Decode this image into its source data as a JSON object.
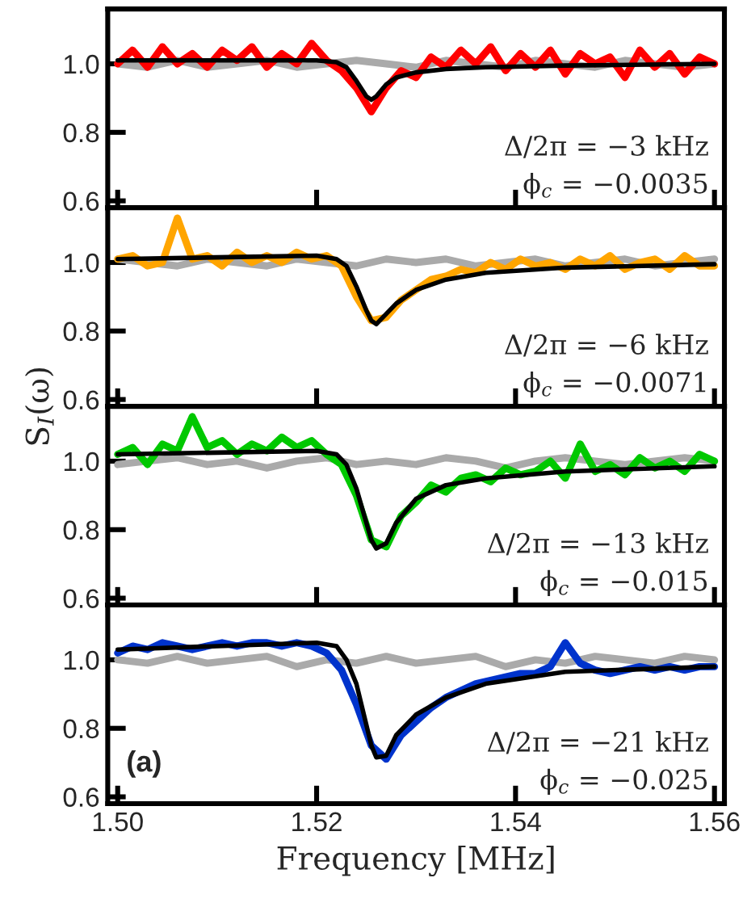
{
  "chart_data": [
    {
      "type": "line",
      "xlim": [
        1.499,
        1.561
      ],
      "ylim": [
        0.58,
        1.16
      ],
      "xticks": [
        {
          "value": 1.5,
          "label": null
        },
        {
          "value": 1.52,
          "label": null
        },
        {
          "value": 1.54,
          "label": null
        },
        {
          "value": 1.56,
          "label": null
        }
      ],
      "yticks": [
        {
          "value": 0.6,
          "label": "0.6"
        },
        {
          "value": 0.8,
          "label": "0.8"
        },
        {
          "value": 1.0,
          "label": "1.0"
        }
      ],
      "tick_labels": "y",
      "grid": false,
      "legend": false,
      "annotations": [
        "Δ/2π = −3 kHz",
        "ϕ$_{c}$ = −0.0035"
      ],
      "series": [
        {
          "color": "#aaaaaa",
          "x": [
            1.5,
            1.503,
            1.506,
            1.509,
            1.512,
            1.515,
            1.518,
            1.521,
            1.524,
            1.527,
            1.53,
            1.533,
            1.536,
            1.539,
            1.542,
            1.545,
            1.548,
            1.551,
            1.554,
            1.557,
            1.56
          ],
          "values": [
            1.0,
            0.99,
            1.01,
            0.99,
            1.0,
            1.01,
            0.99,
            1.0,
            1.01,
            1.0,
            0.99,
            1.01,
            1.0,
            0.99,
            1.01,
            1.0,
            0.99,
            1.01,
            1.0,
            0.99,
            1.0
          ]
        },
        {
          "color": "#ff0000",
          "x": [
            1.5,
            1.5015,
            1.503,
            1.5045,
            1.506,
            1.5075,
            1.509,
            1.5105,
            1.512,
            1.5135,
            1.515,
            1.5165,
            1.518,
            1.5195,
            1.521,
            1.5225,
            1.524,
            1.5255,
            1.527,
            1.5285,
            1.53,
            1.5315,
            1.533,
            1.5345,
            1.536,
            1.5375,
            1.539,
            1.5405,
            1.542,
            1.5435,
            1.545,
            1.5465,
            1.548,
            1.5495,
            1.551,
            1.5525,
            1.554,
            1.5555,
            1.557,
            1.5585,
            1.56
          ],
          "values": [
            1.0,
            1.04,
            0.99,
            1.05,
            1.0,
            1.03,
            0.99,
            1.04,
            1.01,
            1.05,
            0.99,
            1.03,
            1.0,
            1.06,
            1.01,
            0.98,
            0.93,
            0.86,
            0.93,
            0.98,
            0.96,
            1.02,
            0.99,
            1.04,
            1.0,
            1.05,
            0.98,
            1.03,
            0.99,
            1.04,
            0.97,
            1.03,
            1.0,
            1.02,
            0.96,
            1.04,
            0.99,
            1.03,
            0.97,
            1.02,
            1.0
          ]
        },
        {
          "color": "#000000",
          "x": [
            1.5,
            1.51,
            1.52,
            1.522,
            1.523,
            1.524,
            1.525,
            1.5255,
            1.526,
            1.527,
            1.528,
            1.53,
            1.533,
            1.537,
            1.545,
            1.56
          ],
          "values": [
            1.01,
            1.01,
            1.01,
            1.005,
            0.99,
            0.95,
            0.905,
            0.895,
            0.905,
            0.94,
            0.96,
            0.975,
            0.985,
            0.99,
            0.995,
            1.0
          ]
        }
      ]
    },
    {
      "type": "line",
      "xlim": [
        1.499,
        1.561
      ],
      "ylim": [
        0.58,
        1.16
      ],
      "xticks": [
        {
          "value": 1.5,
          "label": null
        },
        {
          "value": 1.52,
          "label": null
        },
        {
          "value": 1.54,
          "label": null
        },
        {
          "value": 1.56,
          "label": null
        }
      ],
      "yticks": [
        {
          "value": 0.6,
          "label": "0.6"
        },
        {
          "value": 0.8,
          "label": "0.8"
        },
        {
          "value": 1.0,
          "label": "1.0"
        }
      ],
      "tick_labels": "y",
      "grid": false,
      "legend": false,
      "annotations": [
        "Δ/2π = −6 kHz",
        "ϕ$_{c}$ = −0.0071"
      ],
      "series": [
        {
          "color": "#aaaaaa",
          "x": [
            1.5,
            1.503,
            1.506,
            1.509,
            1.512,
            1.515,
            1.518,
            1.521,
            1.524,
            1.527,
            1.53,
            1.533,
            1.536,
            1.539,
            1.542,
            1.545,
            1.548,
            1.551,
            1.554,
            1.557,
            1.56
          ],
          "values": [
            1.01,
            1.0,
            0.99,
            1.01,
            1.0,
            0.99,
            1.01,
            1.0,
            0.99,
            1.01,
            1.0,
            1.01,
            0.99,
            1.0,
            1.01,
            0.99,
            1.0,
            1.01,
            0.99,
            1.0,
            1.01
          ]
        },
        {
          "color": "#ffa500",
          "x": [
            1.5,
            1.5015,
            1.503,
            1.5045,
            1.506,
            1.5075,
            1.509,
            1.5105,
            1.512,
            1.5135,
            1.515,
            1.5165,
            1.518,
            1.5195,
            1.521,
            1.5225,
            1.524,
            1.5255,
            1.527,
            1.5285,
            1.53,
            1.5315,
            1.533,
            1.5345,
            1.536,
            1.5375,
            1.539,
            1.5405,
            1.542,
            1.5435,
            1.545,
            1.5465,
            1.548,
            1.5495,
            1.551,
            1.5525,
            1.554,
            1.5555,
            1.557,
            1.5585,
            1.56
          ],
          "values": [
            1.01,
            1.02,
            0.99,
            1.0,
            1.13,
            1.01,
            1.02,
            0.99,
            1.03,
            1.0,
            1.02,
            1.0,
            1.03,
            1.01,
            1.02,
            0.99,
            0.9,
            0.83,
            0.84,
            0.89,
            0.92,
            0.95,
            0.96,
            0.98,
            0.97,
            1.0,
            0.98,
            1.01,
            0.99,
            1.0,
            0.98,
            1.01,
            0.99,
            1.02,
            0.98,
            1.0,
            1.01,
            0.98,
            1.02,
            0.99,
            0.99
          ]
        },
        {
          "color": "#000000",
          "x": [
            1.5,
            1.51,
            1.52,
            1.522,
            1.523,
            1.524,
            1.525,
            1.5255,
            1.526,
            1.527,
            1.528,
            1.53,
            1.533,
            1.537,
            1.545,
            1.56
          ],
          "values": [
            1.01,
            1.015,
            1.02,
            1.01,
            0.99,
            0.93,
            0.86,
            0.83,
            0.82,
            0.85,
            0.88,
            0.92,
            0.95,
            0.97,
            0.985,
            0.995
          ]
        }
      ]
    },
    {
      "type": "line",
      "xlim": [
        1.499,
        1.561
      ],
      "ylim": [
        0.58,
        1.16
      ],
      "xticks": [
        {
          "value": 1.5,
          "label": null
        },
        {
          "value": 1.52,
          "label": null
        },
        {
          "value": 1.54,
          "label": null
        },
        {
          "value": 1.56,
          "label": null
        }
      ],
      "yticks": [
        {
          "value": 0.6,
          "label": "0.6"
        },
        {
          "value": 0.8,
          "label": "0.8"
        },
        {
          "value": 1.0,
          "label": "1.0"
        }
      ],
      "tick_labels": "y",
      "grid": false,
      "legend": false,
      "ylabel": "S$_{I}$(ω)",
      "annotations": [
        "Δ/2π = −13 kHz",
        "ϕ$_{c}$ = −0.015"
      ],
      "series": [
        {
          "color": "#aaaaaa",
          "x": [
            1.5,
            1.503,
            1.506,
            1.509,
            1.512,
            1.515,
            1.518,
            1.521,
            1.524,
            1.527,
            1.53,
            1.533,
            1.536,
            1.539,
            1.542,
            1.545,
            1.548,
            1.551,
            1.554,
            1.557,
            1.56
          ],
          "values": [
            0.99,
            1.0,
            1.01,
            0.99,
            1.0,
            0.98,
            1.0,
            1.01,
            0.99,
            1.0,
            0.99,
            1.01,
            1.0,
            0.98,
            1.0,
            1.01,
            1.0,
            0.99,
            1.0,
            1.01,
            1.0
          ]
        },
        {
          "color": "#00c800",
          "x": [
            1.5,
            1.5015,
            1.503,
            1.5045,
            1.506,
            1.5075,
            1.509,
            1.5105,
            1.512,
            1.5135,
            1.515,
            1.5165,
            1.518,
            1.5195,
            1.521,
            1.5225,
            1.524,
            1.5255,
            1.527,
            1.5285,
            1.53,
            1.5315,
            1.533,
            1.5345,
            1.536,
            1.5375,
            1.539,
            1.5405,
            1.542,
            1.5435,
            1.545,
            1.5465,
            1.548,
            1.5495,
            1.551,
            1.5525,
            1.554,
            1.5555,
            1.557,
            1.5585,
            1.56
          ],
          "values": [
            1.02,
            1.04,
            0.99,
            1.05,
            1.03,
            1.13,
            1.04,
            1.06,
            1.02,
            1.05,
            1.03,
            1.07,
            1.04,
            1.06,
            1.02,
            0.99,
            0.9,
            0.77,
            0.75,
            0.84,
            0.88,
            0.93,
            0.91,
            0.95,
            0.96,
            0.94,
            0.98,
            0.96,
            0.97,
            1.0,
            0.95,
            1.05,
            0.97,
            0.99,
            0.96,
            1.01,
            0.98,
            1.0,
            0.97,
            1.02,
            1.0
          ]
        },
        {
          "color": "#000000",
          "x": [
            1.5,
            1.51,
            1.52,
            1.522,
            1.523,
            1.524,
            1.525,
            1.5255,
            1.526,
            1.527,
            1.528,
            1.53,
            1.533,
            1.537,
            1.545,
            1.56
          ],
          "values": [
            1.02,
            1.025,
            1.03,
            1.02,
            0.99,
            0.92,
            0.82,
            0.77,
            0.745,
            0.76,
            0.82,
            0.89,
            0.93,
            0.95,
            0.97,
            0.985
          ]
        }
      ]
    },
    {
      "type": "line",
      "xlim": [
        1.499,
        1.561
      ],
      "ylim": [
        0.58,
        1.16
      ],
      "xticks": [
        {
          "value": 1.5,
          "label": "1.50"
        },
        {
          "value": 1.52,
          "label": "1.52"
        },
        {
          "value": 1.54,
          "label": "1.54"
        },
        {
          "value": 1.56,
          "label": "1.56"
        }
      ],
      "yticks": [
        {
          "value": 0.6,
          "label": "0.6"
        },
        {
          "value": 0.8,
          "label": "0.8"
        },
        {
          "value": 1.0,
          "label": "1.0"
        }
      ],
      "grid": false,
      "legend": false,
      "xlabel": "Frequency [MHz]",
      "annotations": [
        "Δ/2π = −21 kHz",
        "ϕ$_{c}$ = −0.025",
        "(a)"
      ],
      "series": [
        {
          "color": "#aaaaaa",
          "x": [
            1.5,
            1.503,
            1.506,
            1.509,
            1.512,
            1.515,
            1.518,
            1.521,
            1.524,
            1.527,
            1.53,
            1.533,
            1.536,
            1.539,
            1.542,
            1.545,
            1.548,
            1.551,
            1.554,
            1.557,
            1.56
          ],
          "values": [
            1.0,
            0.99,
            1.01,
            0.99,
            1.0,
            1.01,
            0.98,
            1.0,
            0.99,
            1.01,
            0.99,
            1.0,
            1.01,
            0.98,
            1.0,
            0.99,
            1.01,
            1.0,
            0.99,
            1.01,
            1.0
          ]
        },
        {
          "color": "#0033cc",
          "x": [
            1.5,
            1.5015,
            1.503,
            1.5045,
            1.506,
            1.5075,
            1.509,
            1.5105,
            1.512,
            1.5135,
            1.515,
            1.5165,
            1.518,
            1.5195,
            1.521,
            1.5225,
            1.524,
            1.5255,
            1.527,
            1.5285,
            1.53,
            1.5315,
            1.533,
            1.5345,
            1.536,
            1.5375,
            1.539,
            1.5405,
            1.542,
            1.5435,
            1.545,
            1.5465,
            1.548,
            1.5495,
            1.551,
            1.5525,
            1.554,
            1.5555,
            1.557,
            1.5585,
            1.56
          ],
          "values": [
            1.02,
            1.04,
            1.03,
            1.05,
            1.04,
            1.03,
            1.04,
            1.05,
            1.04,
            1.05,
            1.05,
            1.04,
            1.05,
            1.04,
            1.02,
            0.97,
            0.87,
            0.75,
            0.71,
            0.78,
            0.82,
            0.86,
            0.89,
            0.91,
            0.93,
            0.94,
            0.95,
            0.96,
            0.96,
            0.98,
            1.05,
            0.99,
            0.97,
            0.96,
            0.97,
            0.98,
            0.97,
            0.98,
            0.97,
            0.98,
            0.98
          ]
        },
        {
          "color": "#000000",
          "x": [
            1.5,
            1.51,
            1.52,
            1.522,
            1.523,
            1.524,
            1.525,
            1.5255,
            1.526,
            1.527,
            1.528,
            1.53,
            1.533,
            1.537,
            1.545,
            1.56
          ],
          "values": [
            1.03,
            1.04,
            1.05,
            1.04,
            1.0,
            0.93,
            0.81,
            0.75,
            0.715,
            0.72,
            0.78,
            0.84,
            0.89,
            0.93,
            0.965,
            0.98
          ]
        }
      ]
    }
  ]
}
